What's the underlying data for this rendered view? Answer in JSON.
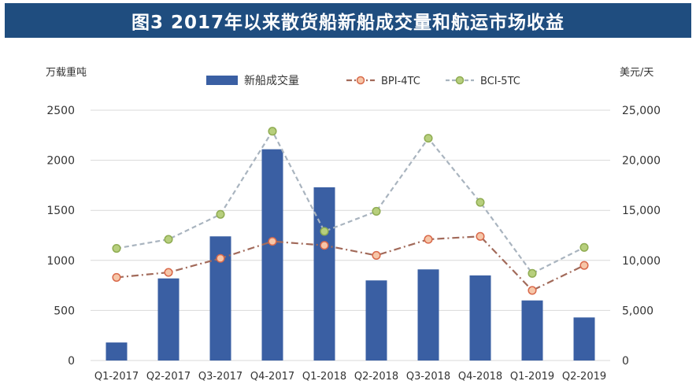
{
  "title": "图3 2017年以来散货船新船成交量和航运市场收益",
  "chart_data": {
    "type": "bar",
    "categories": [
      "Q1-2017",
      "Q2-2017",
      "Q3-2017",
      "Q4-2017",
      "Q1-2018",
      "Q2-2018",
      "Q3-2018",
      "Q4-2018",
      "Q1-2019",
      "Q2-2019"
    ],
    "left_axis_label": "万载重吨",
    "right_axis_label": "美元/天",
    "left_ticks": [
      "0",
      "500",
      "1000",
      "1500",
      "2000",
      "2500"
    ],
    "right_ticks": [
      "0",
      "5,000",
      "10,000",
      "15,000",
      "20,000",
      "25,000"
    ],
    "ylim_left": [
      0,
      2500
    ],
    "ylim_right": [
      0,
      25000
    ],
    "series": [
      {
        "name": "新船成交量",
        "kind": "bar",
        "axis": "left",
        "color": "#3a5fa3",
        "values": [
          180,
          820,
          1240,
          2110,
          1730,
          800,
          910,
          850,
          600,
          430
        ]
      },
      {
        "name": "BPI-4TC",
        "kind": "line",
        "axis": "right",
        "color": "#a26a5a",
        "marker_fill": "#f6c6a8",
        "marker_stroke": "#d9694a",
        "values": [
          8300,
          8800,
          10200,
          11900,
          11500,
          10500,
          12100,
          12400,
          7000,
          9500
        ]
      },
      {
        "name": "BCI-5TC",
        "kind": "line",
        "axis": "right",
        "color": "#a9b4bf",
        "marker_fill": "#b7cf7d",
        "marker_stroke": "#8fac52",
        "values": [
          11200,
          12100,
          14600,
          22900,
          12900,
          14900,
          22200,
          15800,
          8700,
          11300
        ]
      }
    ],
    "grid": true,
    "legend_position": "top"
  }
}
